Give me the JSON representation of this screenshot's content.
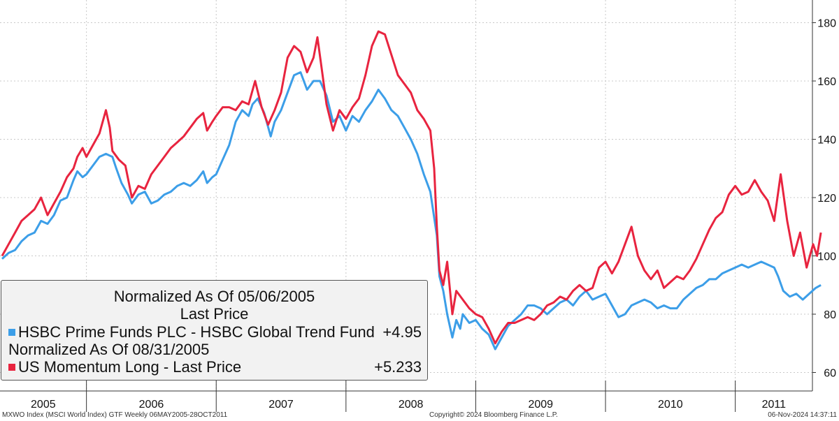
{
  "chart_data": {
    "type": "line",
    "y_axis": {
      "ticks": [
        60,
        80,
        100,
        120,
        140,
        160,
        180
      ],
      "range": [
        55,
        183
      ],
      "side": "right"
    },
    "x_axis": {
      "labels": [
        "2005",
        "2006",
        "2007",
        "2008",
        "2009",
        "2010",
        "2011"
      ],
      "range": [
        2005.35,
        2011.83
      ]
    },
    "grid": true,
    "legend": {
      "line1": "Normalized As Of 05/06/2005",
      "line2": "Last Price",
      "line4": "Normalized As Of 08/31/2005"
    },
    "series": [
      {
        "name": "HSBC Prime Funds PLC - HSBC Global Trend Fund",
        "last_value": "+4.95",
        "color": "#3c9ee8",
        "points": [
          [
            2005.35,
            99
          ],
          [
            2005.4,
            101
          ],
          [
            2005.45,
            102
          ],
          [
            2005.5,
            105
          ],
          [
            2005.55,
            107
          ],
          [
            2005.6,
            108
          ],
          [
            2005.65,
            112
          ],
          [
            2005.7,
            111
          ],
          [
            2005.75,
            114
          ],
          [
            2005.8,
            119
          ],
          [
            2005.85,
            120
          ],
          [
            2005.9,
            126
          ],
          [
            2005.93,
            129
          ],
          [
            2005.97,
            127
          ],
          [
            2006.0,
            128
          ],
          [
            2006.05,
            131
          ],
          [
            2006.1,
            134
          ],
          [
            2006.15,
            135
          ],
          [
            2006.2,
            134
          ],
          [
            2006.23,
            130
          ],
          [
            2006.27,
            125
          ],
          [
            2006.32,
            121
          ],
          [
            2006.35,
            118
          ],
          [
            2006.4,
            121
          ],
          [
            2006.45,
            122
          ],
          [
            2006.5,
            118
          ],
          [
            2006.55,
            119
          ],
          [
            2006.6,
            121
          ],
          [
            2006.65,
            122
          ],
          [
            2006.7,
            124
          ],
          [
            2006.75,
            125
          ],
          [
            2006.8,
            124
          ],
          [
            2006.85,
            126
          ],
          [
            2006.9,
            129
          ],
          [
            2006.93,
            125
          ],
          [
            2006.97,
            127
          ],
          [
            2007.0,
            128
          ],
          [
            2007.05,
            133
          ],
          [
            2007.1,
            138
          ],
          [
            2007.15,
            146
          ],
          [
            2007.2,
            150
          ],
          [
            2007.25,
            148
          ],
          [
            2007.28,
            152
          ],
          [
            2007.32,
            154
          ],
          [
            2007.37,
            149
          ],
          [
            2007.42,
            141
          ],
          [
            2007.45,
            146
          ],
          [
            2007.5,
            150
          ],
          [
            2007.55,
            156
          ],
          [
            2007.6,
            162
          ],
          [
            2007.65,
            163
          ],
          [
            2007.7,
            157
          ],
          [
            2007.75,
            160
          ],
          [
            2007.8,
            160
          ],
          [
            2007.85,
            155
          ],
          [
            2007.9,
            146
          ],
          [
            2007.95,
            148
          ],
          [
            2008.0,
            143
          ],
          [
            2008.05,
            148
          ],
          [
            2008.1,
            146
          ],
          [
            2008.15,
            150
          ],
          [
            2008.2,
            153
          ],
          [
            2008.25,
            157
          ],
          [
            2008.3,
            154
          ],
          [
            2008.35,
            150
          ],
          [
            2008.4,
            148
          ],
          [
            2008.45,
            144
          ],
          [
            2008.5,
            140
          ],
          [
            2008.55,
            135
          ],
          [
            2008.6,
            128
          ],
          [
            2008.65,
            122
          ],
          [
            2008.7,
            107
          ],
          [
            2008.72,
            93
          ],
          [
            2008.75,
            88
          ],
          [
            2008.78,
            80
          ],
          [
            2008.82,
            72
          ],
          [
            2008.85,
            78
          ],
          [
            2008.88,
            75
          ],
          [
            2008.9,
            80
          ],
          [
            2008.95,
            77
          ],
          [
            2009.0,
            78
          ],
          [
            2009.05,
            75
          ],
          [
            2009.1,
            73
          ],
          [
            2009.15,
            68
          ],
          [
            2009.2,
            72
          ],
          [
            2009.25,
            76
          ],
          [
            2009.3,
            78
          ],
          [
            2009.35,
            80
          ],
          [
            2009.4,
            83
          ],
          [
            2009.45,
            83
          ],
          [
            2009.5,
            82
          ],
          [
            2009.55,
            80
          ],
          [
            2009.6,
            82
          ],
          [
            2009.65,
            84
          ],
          [
            2009.7,
            85
          ],
          [
            2009.75,
            83
          ],
          [
            2009.8,
            86
          ],
          [
            2009.85,
            88
          ],
          [
            2009.9,
            85
          ],
          [
            2009.95,
            86
          ],
          [
            2010.0,
            87
          ],
          [
            2010.05,
            83
          ],
          [
            2010.1,
            79
          ],
          [
            2010.15,
            80
          ],
          [
            2010.2,
            83
          ],
          [
            2010.25,
            84
          ],
          [
            2010.3,
            85
          ],
          [
            2010.35,
            84
          ],
          [
            2010.4,
            82
          ],
          [
            2010.45,
            83
          ],
          [
            2010.5,
            82
          ],
          [
            2010.55,
            82
          ],
          [
            2010.6,
            85
          ],
          [
            2010.65,
            87
          ],
          [
            2010.7,
            89
          ],
          [
            2010.75,
            90
          ],
          [
            2010.8,
            92
          ],
          [
            2010.85,
            92
          ],
          [
            2010.9,
            94
          ],
          [
            2010.95,
            95
          ],
          [
            2011.0,
            96
          ],
          [
            2011.05,
            97
          ],
          [
            2011.1,
            96
          ],
          [
            2011.15,
            97
          ],
          [
            2011.2,
            98
          ],
          [
            2011.25,
            97
          ],
          [
            2011.3,
            96
          ],
          [
            2011.33,
            93
          ],
          [
            2011.37,
            88
          ],
          [
            2011.42,
            86
          ],
          [
            2011.47,
            87
          ],
          [
            2011.52,
            85
          ],
          [
            2011.57,
            87
          ],
          [
            2011.62,
            89
          ],
          [
            2011.66,
            90
          ]
        ]
      },
      {
        "name": "US Momentum Long - Last Price",
        "last_value": "+5.233",
        "color": "#e8243f",
        "points": [
          [
            2005.35,
            100
          ],
          [
            2005.4,
            104
          ],
          [
            2005.45,
            108
          ],
          [
            2005.5,
            112
          ],
          [
            2005.55,
            114
          ],
          [
            2005.6,
            116
          ],
          [
            2005.65,
            120
          ],
          [
            2005.7,
            114
          ],
          [
            2005.75,
            118
          ],
          [
            2005.8,
            122
          ],
          [
            2005.85,
            127
          ],
          [
            2005.9,
            130
          ],
          [
            2005.93,
            134
          ],
          [
            2005.97,
            137
          ],
          [
            2006.0,
            134
          ],
          [
            2006.05,
            138
          ],
          [
            2006.1,
            142
          ],
          [
            2006.15,
            150
          ],
          [
            2006.18,
            144
          ],
          [
            2006.2,
            136
          ],
          [
            2006.25,
            133
          ],
          [
            2006.3,
            131
          ],
          [
            2006.35,
            120
          ],
          [
            2006.4,
            124
          ],
          [
            2006.45,
            123
          ],
          [
            2006.5,
            128
          ],
          [
            2006.55,
            131
          ],
          [
            2006.6,
            134
          ],
          [
            2006.65,
            137
          ],
          [
            2006.7,
            139
          ],
          [
            2006.75,
            141
          ],
          [
            2006.8,
            144
          ],
          [
            2006.85,
            147
          ],
          [
            2006.9,
            149
          ],
          [
            2006.93,
            143
          ],
          [
            2006.97,
            146
          ],
          [
            2007.0,
            148
          ],
          [
            2007.05,
            151
          ],
          [
            2007.1,
            151
          ],
          [
            2007.15,
            150
          ],
          [
            2007.2,
            153
          ],
          [
            2007.25,
            152
          ],
          [
            2007.3,
            160
          ],
          [
            2007.35,
            151
          ],
          [
            2007.4,
            145
          ],
          [
            2007.45,
            150
          ],
          [
            2007.5,
            156
          ],
          [
            2007.55,
            168
          ],
          [
            2007.6,
            172
          ],
          [
            2007.65,
            170
          ],
          [
            2007.7,
            163
          ],
          [
            2007.75,
            168
          ],
          [
            2007.78,
            175
          ],
          [
            2007.82,
            162
          ],
          [
            2007.85,
            152
          ],
          [
            2007.9,
            143
          ],
          [
            2007.95,
            150
          ],
          [
            2008.0,
            147
          ],
          [
            2008.05,
            151
          ],
          [
            2008.1,
            154
          ],
          [
            2008.15,
            162
          ],
          [
            2008.2,
            172
          ],
          [
            2008.25,
            177
          ],
          [
            2008.3,
            176
          ],
          [
            2008.35,
            169
          ],
          [
            2008.4,
            162
          ],
          [
            2008.45,
            159
          ],
          [
            2008.5,
            156
          ],
          [
            2008.55,
            150
          ],
          [
            2008.6,
            147
          ],
          [
            2008.65,
            143
          ],
          [
            2008.68,
            130
          ],
          [
            2008.7,
            110
          ],
          [
            2008.72,
            95
          ],
          [
            2008.75,
            90
          ],
          [
            2008.78,
            98
          ],
          [
            2008.82,
            80
          ],
          [
            2008.85,
            88
          ],
          [
            2008.9,
            85
          ],
          [
            2008.95,
            82
          ],
          [
            2009.0,
            80
          ],
          [
            2009.05,
            79
          ],
          [
            2009.1,
            75
          ],
          [
            2009.15,
            70
          ],
          [
            2009.2,
            74
          ],
          [
            2009.25,
            77
          ],
          [
            2009.3,
            77
          ],
          [
            2009.35,
            78
          ],
          [
            2009.4,
            79
          ],
          [
            2009.45,
            78
          ],
          [
            2009.5,
            80
          ],
          [
            2009.55,
            83
          ],
          [
            2009.6,
            84
          ],
          [
            2009.65,
            86
          ],
          [
            2009.7,
            85
          ],
          [
            2009.75,
            88
          ],
          [
            2009.8,
            90
          ],
          [
            2009.85,
            88
          ],
          [
            2009.9,
            89
          ],
          [
            2009.95,
            96
          ],
          [
            2010.0,
            98
          ],
          [
            2010.05,
            94
          ],
          [
            2010.1,
            98
          ],
          [
            2010.15,
            104
          ],
          [
            2010.2,
            110
          ],
          [
            2010.25,
            100
          ],
          [
            2010.3,
            95
          ],
          [
            2010.35,
            92
          ],
          [
            2010.4,
            95
          ],
          [
            2010.45,
            89
          ],
          [
            2010.5,
            91
          ],
          [
            2010.55,
            93
          ],
          [
            2010.6,
            92
          ],
          [
            2010.65,
            95
          ],
          [
            2010.7,
            99
          ],
          [
            2010.75,
            104
          ],
          [
            2010.8,
            109
          ],
          [
            2010.85,
            113
          ],
          [
            2010.9,
            115
          ],
          [
            2010.95,
            121
          ],
          [
            2011.0,
            124
          ],
          [
            2011.05,
            121
          ],
          [
            2011.1,
            122
          ],
          [
            2011.15,
            126
          ],
          [
            2011.2,
            122
          ],
          [
            2011.25,
            119
          ],
          [
            2011.3,
            112
          ],
          [
            2011.35,
            128
          ],
          [
            2011.4,
            112
          ],
          [
            2011.45,
            100
          ],
          [
            2011.5,
            108
          ],
          [
            2011.55,
            96
          ],
          [
            2011.6,
            104
          ],
          [
            2011.63,
            100
          ],
          [
            2011.66,
            108
          ]
        ]
      }
    ]
  },
  "footer": {
    "left": "MXWO Index (MSCI World Index) GTF  Weekly 06MAY2005-28OCT2011",
    "center": "Copyright© 2024 Bloomberg Finance L.P.",
    "right": "06-Nov-2024 14:37:11"
  }
}
